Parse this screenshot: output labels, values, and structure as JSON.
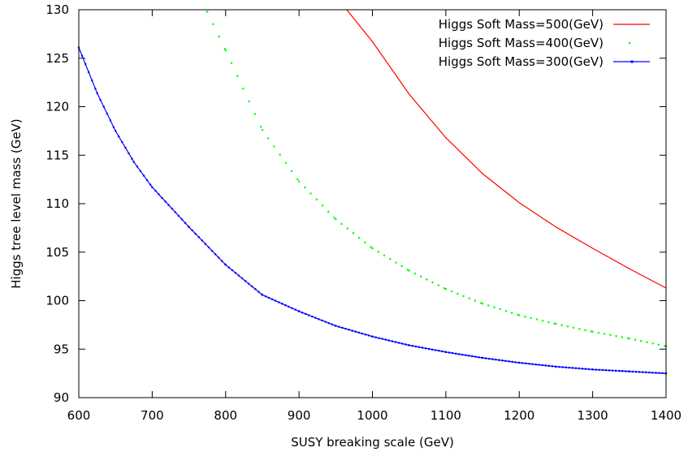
{
  "chart_data": {
    "type": "line",
    "title": "",
    "xlabel": "SUSY breaking scale (GeV)",
    "ylabel": "Higgs tree level mass (GeV)",
    "xlim": [
      600,
      1400
    ],
    "ylim": [
      90,
      130
    ],
    "x_ticks": [
      "600",
      "700",
      "800",
      "900",
      "1000",
      "1100",
      "1200",
      "1300",
      "1400"
    ],
    "y_ticks": [
      "90",
      "95",
      "100",
      "105",
      "110",
      "115",
      "120",
      "125",
      "130"
    ],
    "grid": false,
    "legend_position": "top-right",
    "series": [
      {
        "name": "Higgs Soft Mass=500(GeV)",
        "color": "#ff0000",
        "style": "line",
        "x": [
          965,
          1000,
          1050,
          1100,
          1150,
          1200,
          1250,
          1300,
          1350,
          1400
        ],
        "y": [
          130,
          126.7,
          121.3,
          116.8,
          113.1,
          110.1,
          107.6,
          105.4,
          103.3,
          101.3
        ]
      },
      {
        "name": "Higgs Soft Mass=400(GeV)",
        "color": "#00ff00",
        "style": "dots",
        "x": [
          775,
          800,
          850,
          900,
          950,
          1000,
          1050,
          1100,
          1150,
          1200,
          1250,
          1300,
          1350,
          1400
        ],
        "y": [
          129.8,
          125.8,
          117.6,
          112.3,
          108.4,
          105.4,
          103.1,
          101.2,
          99.7,
          98.5,
          97.6,
          96.8,
          96.1,
          95.3
        ]
      },
      {
        "name": "Higgs Soft Mass=300(GeV)",
        "color": "#0000ff",
        "style": "linepoints",
        "x": [
          600,
          625,
          650,
          675,
          700,
          750,
          800,
          850,
          900,
          950,
          1000,
          1050,
          1100,
          1150,
          1200,
          1250,
          1300,
          1350,
          1400
        ],
        "y": [
          126.1,
          121.4,
          117.5,
          114.3,
          111.7,
          107.6,
          103.7,
          100.6,
          98.9,
          97.4,
          96.3,
          95.4,
          94.7,
          94.1,
          93.6,
          93.2,
          92.9,
          92.7,
          92.5
        ]
      }
    ]
  }
}
